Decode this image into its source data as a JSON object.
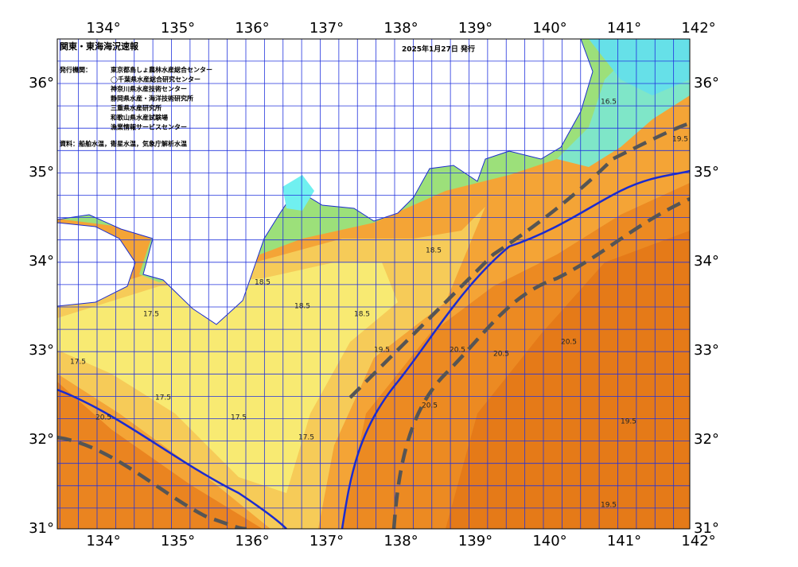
{
  "header": {
    "title": "関東・東海海況速報",
    "date": "2025年1月27日 発行"
  },
  "issuers": {
    "label": "発行機関：",
    "list": [
      "東京都島しょ農林水産総合センター",
      "◯千葉県水産総合研究センター",
      "神奈川県水産技術センター",
      "静岡県水産・海洋技術研究所",
      "三重県水産研究所",
      "和歌山県水産試験場",
      "漁業情報サービスセンター"
    ]
  },
  "source": "資料：船舶水温，衛星水温，気象庁解析水温",
  "lon_labels": [
    "134°",
    "135°",
    "136°",
    "137°",
    "138°",
    "139°",
    "140°",
    "141°",
    "142°"
  ],
  "lat_labels": [
    "36°",
    "35°",
    "34°",
    "33°",
    "32°",
    "31°"
  ],
  "contour_labels": [
    "16.5",
    "17.5",
    "17.5",
    "17.5",
    "17.5",
    "17.5",
    "18.5",
    "18.5",
    "18.5",
    "18.5",
    "19.5",
    "19.5",
    "19.5",
    "19.5",
    "20.5",
    "20.5",
    "20.5",
    "20.5",
    "20.5"
  ]
}
